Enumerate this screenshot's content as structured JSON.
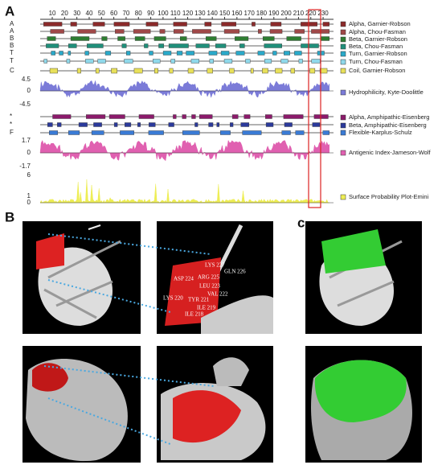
{
  "panel_a": {
    "label": "A",
    "top_ticks": [
      10,
      20,
      30,
      40,
      50,
      60,
      70,
      80,
      90,
      100,
      110,
      120,
      130,
      140,
      150,
      160,
      170,
      180,
      190,
      200,
      210,
      220,
      230
    ],
    "track_labels": [
      "A",
      "A",
      "B",
      "B",
      "T",
      "T",
      "C"
    ],
    "hydro_ticks": [
      "4.5",
      "0",
      "-4.5"
    ],
    "amph_labels": [
      "*",
      "*",
      "F"
    ],
    "antigenic_ticks": [
      "1.7",
      "0",
      "-1.7"
    ],
    "surface_ticks": [
      "6",
      "1",
      "0"
    ],
    "legend": [
      {
        "label": "Alpha, Garnier-Robson",
        "color": "#8b2a2a"
      },
      {
        "label": "Alpha, Chou-Fasman",
        "color": "#a04848"
      },
      {
        "label": "Beta, Garnier-Robson",
        "color": "#2e7d32"
      },
      {
        "label": "Beta, Chou-Fasman",
        "color": "#1f8f7a"
      },
      {
        "label": "Turn, Garnier-Robson",
        "color": "#2aa9c9"
      },
      {
        "label": "Turn, Chou-Fasman",
        "color": "#8fd8ea"
      },
      {
        "label": "Coil, Garnier-Robson",
        "color": "#e8e05a"
      },
      {
        "label": "Hydrophilicity, Kyte-Doolittle",
        "color": "#7b7bd8"
      },
      {
        "label": "Alpha, Amphipathic-Eisenberg",
        "color": "#8b1a6b"
      },
      {
        "label": "Beta, Amphipathic-Eisenberg",
        "color": "#2b3a9b"
      },
      {
        "label": "Flexible-Karplus-Schulz",
        "color": "#3a7bd5"
      },
      {
        "label": "Antigenic Index-Jameson-Wolf",
        "color": "#e060b0"
      },
      {
        "label": "Surface Probability Plot-Emini",
        "color": "#eeee55"
      }
    ]
  },
  "panel_b": {
    "label": "B",
    "residues": [
      "LYS 227",
      "GLN 226",
      "ARG 225",
      "ASP 224",
      "LEU 223",
      "VAL 222",
      "TYR 221",
      "LYS 220",
      "ILE 219",
      "ILE 218"
    ]
  },
  "panel_c": {
    "label": "c"
  }
}
